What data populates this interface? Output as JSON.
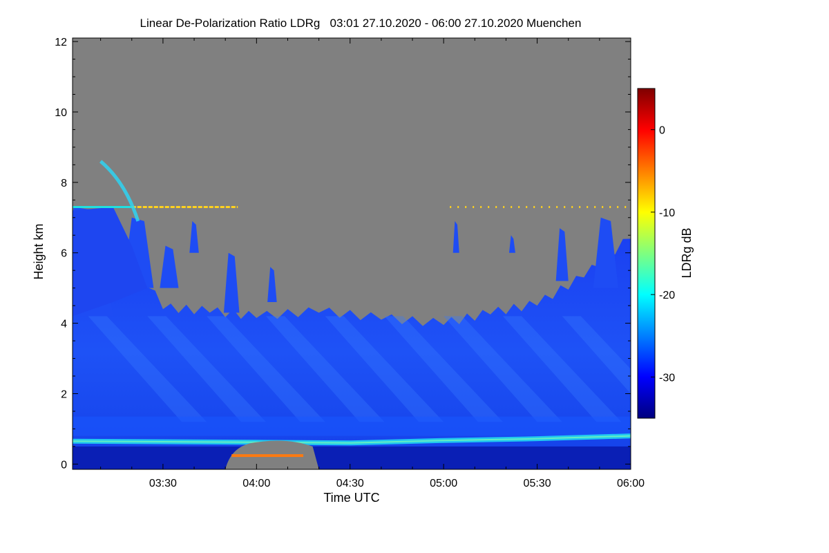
{
  "chart_data": {
    "type": "heatmap",
    "title": "Linear De-Polarization Ratio LDRg   03:01 27.10.2020 - 06:00 27.10.2020 Muenchen",
    "xlabel": "Time UTC",
    "ylabel": "Height km",
    "xlim": [
      "03:01",
      "06:00"
    ],
    "ylim": [
      -0.15,
      12.1
    ],
    "x_ticks": [
      "03:30",
      "04:00",
      "04:30",
      "05:00",
      "05:30",
      "06:00"
    ],
    "y_ticks": [
      0,
      2,
      4,
      6,
      8,
      10,
      12
    ],
    "colorbar": {
      "label": "LDRg dB",
      "range": [
        -35,
        5
      ],
      "ticks": [
        0,
        -10,
        -20,
        -30
      ],
      "colormap": [
        "#00007f",
        "#0000ff",
        "#007fff",
        "#00ffff",
        "#7fff7f",
        "#ffff00",
        "#ff7f00",
        "#ff0000",
        "#7f0000"
      ]
    },
    "no_signal_color": "#808080",
    "features": {
      "cloud_top_km": [
        {
          "time": "03:01",
          "height": 7.2
        },
        {
          "time": "03:15",
          "height": 6.5
        },
        {
          "time": "03:30",
          "height": 4.4
        },
        {
          "time": "03:45",
          "height": 4.3
        },
        {
          "time": "04:00",
          "height": 4.15
        },
        {
          "time": "04:20",
          "height": 4.3
        },
        {
          "time": "04:40",
          "height": 4.1
        },
        {
          "time": "05:00",
          "height": 3.95
        },
        {
          "time": "05:15",
          "height": 4.25
        },
        {
          "time": "05:30",
          "height": 4.5
        },
        {
          "time": "05:45",
          "height": 5.3
        },
        {
          "time": "06:00",
          "height": 6.4
        }
      ],
      "melting_layer_km": [
        {
          "time": "03:01",
          "height": 0.65
        },
        {
          "time": "04:00",
          "height": 0.62
        },
        {
          "time": "04:30",
          "height": 0.6
        },
        {
          "time": "05:00",
          "height": 0.67
        },
        {
          "time": "05:30",
          "height": 0.72
        },
        {
          "time": "06:00",
          "height": 0.8
        }
      ],
      "artifact_line_km": 7.3
    }
  }
}
